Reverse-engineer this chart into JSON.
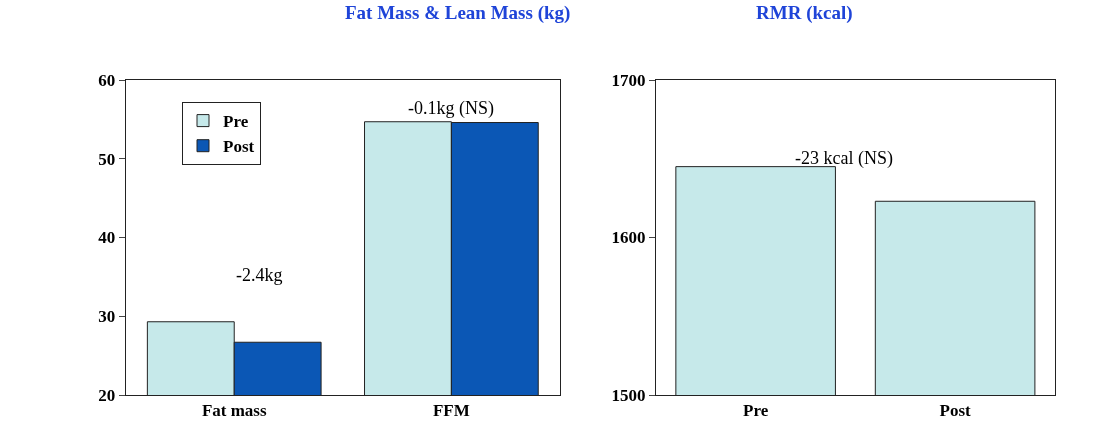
{
  "chart_data": [
    {
      "type": "bar",
      "title": "Fat Mass & Lean Mass (kg)",
      "categories": [
        "Fat mass",
        "FFM"
      ],
      "series": [
        {
          "name": "Pre",
          "color": "#c6e9ea",
          "values": [
            29.3,
            54.7
          ]
        },
        {
          "name": "Post",
          "color": "#0b57b5",
          "values": [
            26.7,
            54.6
          ]
        }
      ],
      "ylim": [
        20,
        60
      ],
      "yticks": [
        20,
        30,
        40,
        50,
        60
      ],
      "legend": "top left",
      "annotations": [
        "-2.4kg",
        "-0.1kg (NS)"
      ]
    },
    {
      "type": "bar",
      "title": "RMR (kcal)",
      "categories": [
        "Pre",
        "Post"
      ],
      "values": [
        1645,
        1623
      ],
      "color": "#c6e9ea",
      "ylim": [
        1500,
        1700
      ],
      "yticks": [
        1500,
        1600,
        1700
      ],
      "legend": false,
      "annotations": [
        "-23 kcal (NS)"
      ]
    }
  ]
}
